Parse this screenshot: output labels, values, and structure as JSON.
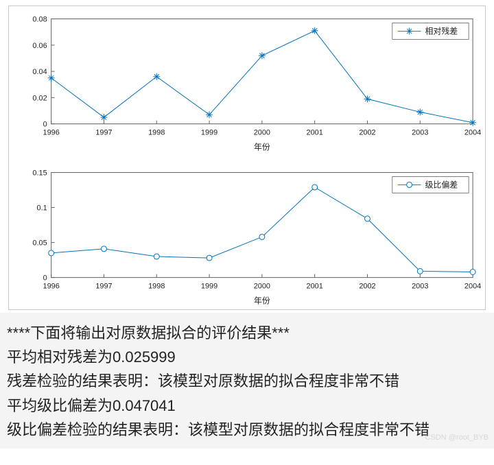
{
  "chart1": {
    "type": "line",
    "legend_label": "相对残差",
    "legend_position": "top-right",
    "marker": "asterisk",
    "line_color": "#0072bd",
    "marker_color": "#0072bd",
    "line_width": 1,
    "marker_size": 5,
    "bg_color": "#ffffff",
    "border_color": "#606060",
    "tick_fontsize": 11,
    "label_fontsize": 12,
    "xlabel": "年份",
    "x": [
      1996,
      1997,
      1998,
      1999,
      2000,
      2001,
      2002,
      2003,
      2004
    ],
    "y": [
      0.035,
      0.005,
      0.036,
      0.007,
      0.052,
      0.071,
      0.019,
      0.009,
      0.001
    ],
    "xlim": [
      1996,
      2004
    ],
    "ylim": [
      0,
      0.08
    ],
    "xticks": [
      1996,
      1997,
      1998,
      1999,
      2000,
      2001,
      2002,
      2003,
      2004
    ],
    "yticks": [
      0,
      0.02,
      0.04,
      0.06,
      0.08
    ]
  },
  "chart2": {
    "type": "line",
    "legend_label": "级比偏差",
    "legend_position": "top-right",
    "marker": "circle",
    "line_color": "#0072bd",
    "marker_color": "#0072bd",
    "line_width": 1,
    "marker_size": 4,
    "bg_color": "#ffffff",
    "border_color": "#606060",
    "tick_fontsize": 11,
    "label_fontsize": 12,
    "xlabel": "年份",
    "x": [
      1996,
      1997,
      1998,
      1999,
      2000,
      2001,
      2002,
      2003,
      2004
    ],
    "y": [
      0.035,
      0.041,
      0.03,
      0.028,
      0.058,
      0.129,
      0.084,
      0.009,
      0.008
    ],
    "xlim": [
      1996,
      2004
    ],
    "ylim": [
      0,
      0.15
    ],
    "xticks": [
      1996,
      1997,
      1998,
      1999,
      2000,
      2001,
      2002,
      2003,
      2004
    ],
    "yticks": [
      0,
      0.05,
      0.1,
      0.15
    ]
  },
  "text": {
    "line1": "****下面将输出对原数据拟合的评价结果***",
    "line2": "平均相对残差为0.025999",
    "line3": "残差检验的结果表明：该模型对原数据的拟合程度非常不错",
    "line4": "平均级比偏差为0.047041",
    "line5": "级比偏差检验的结果表明：该模型对原数据的拟合程度非常不错"
  },
  "watermark": "CSDN @root_BYB"
}
